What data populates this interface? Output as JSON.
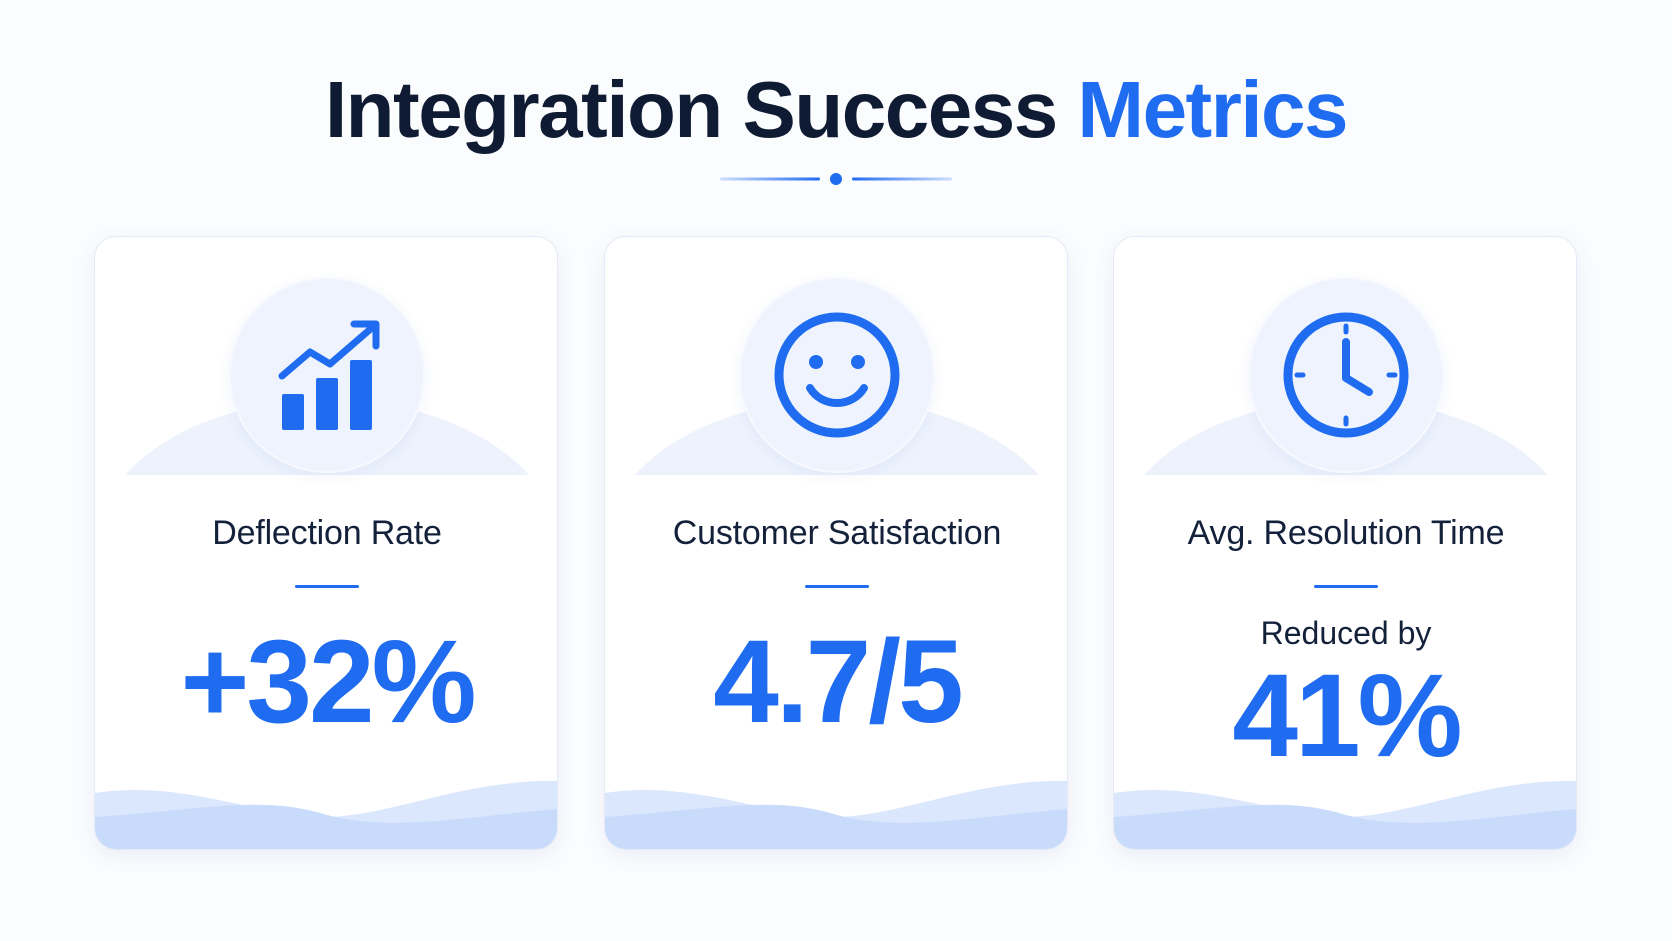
{
  "title": {
    "main": "Integration Success",
    "accent": "Metrics"
  },
  "colors": {
    "accent": "#1f6cf0",
    "heading": "#0f1b33",
    "card_background": "#ffffff",
    "icon_bg": "#eef3fd",
    "wave": "#c9dbfb"
  },
  "cards": [
    {
      "icon": "bar-chart-trend-icon",
      "label": "Deflection Rate",
      "value": "+32%"
    },
    {
      "icon": "smiley-face-icon",
      "label": "Customer Satisfaction",
      "value": "4.7/5"
    },
    {
      "icon": "clock-icon",
      "label": "Avg. Resolution Time",
      "sublabel": "Reduced by",
      "value": "41%"
    }
  ]
}
